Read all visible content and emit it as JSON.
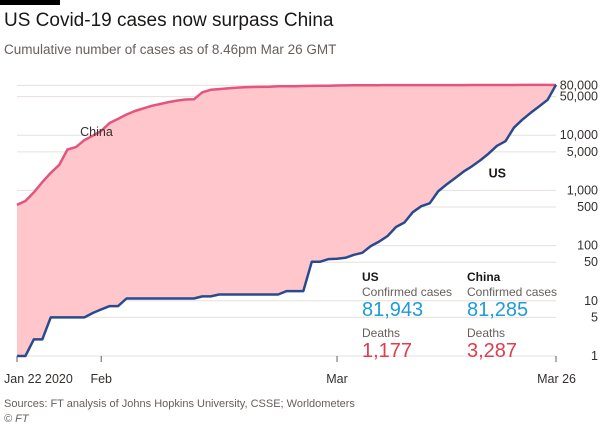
{
  "title": "US Covid-19 cases now surpass China",
  "subtitle": "Cumulative number of cases as of 8.46pm Mar 26 GMT",
  "source": "Sources: FT analysis of Johns Hopkins University, CSSE; Worldometers",
  "credit": "© FT",
  "summary": {
    "us": {
      "name": "US",
      "confirmed_label": "Confirmed cases",
      "confirmed": "81,943",
      "deaths_label": "Deaths",
      "deaths": "1,177"
    },
    "china": {
      "name": "China",
      "confirmed_label": "Confirmed cases",
      "confirmed": "81,285",
      "deaths_label": "Deaths",
      "deaths": "3,287"
    }
  },
  "colors": {
    "us_line": "#2a4a8e",
    "china_line": "#e5547c",
    "area": "#ffc7cc",
    "confirmed_text": "#1f9bd7",
    "deaths_text": "#e03c4d"
  },
  "chart_data": {
    "type": "line",
    "y_scale": "log",
    "grid": true,
    "ylim": [
      1,
      100000
    ],
    "y_ticks": [
      1,
      5,
      10,
      50,
      100,
      500,
      1000,
      5000,
      10000,
      50000,
      80000
    ],
    "y_tick_labels": [
      "1",
      "5",
      "10",
      "50",
      "100",
      "500",
      "1,000",
      "5,000",
      "10,000",
      "50,000",
      "80,000"
    ],
    "x_tick_labels": [
      "Jan 22 2020",
      "Feb",
      "Mar",
      "Mar 26"
    ],
    "x_ticks": [
      0,
      10,
      38,
      64
    ],
    "xlim": [
      0,
      64
    ],
    "series": [
      {
        "name": "China",
        "label": "China",
        "x": [
          0,
          1,
          2,
          3,
          4,
          5,
          6,
          7,
          8,
          9,
          10,
          11,
          12,
          13,
          14,
          15,
          16,
          17,
          18,
          19,
          20,
          21,
          22,
          23,
          24,
          25,
          26,
          27,
          28,
          29,
          30,
          31,
          32,
          33,
          34,
          35,
          36,
          37,
          38,
          39,
          40,
          41,
          42,
          43,
          44,
          45,
          46,
          47,
          48,
          49,
          50,
          51,
          52,
          53,
          54,
          55,
          56,
          57,
          58,
          59,
          60,
          61,
          62,
          63,
          64
        ],
        "values": [
          548,
          643,
          920,
          1406,
          2075,
          2877,
          5509,
          6087,
          8141,
          9802,
          11891,
          16630,
          19716,
          23707,
          27440,
          30587,
          34110,
          36814,
          39829,
          42354,
          44386,
          44759,
          59895,
          66358,
          68413,
          70513,
          72434,
          74211,
          74619,
          75077,
          75550,
          77001,
          77022,
          77241,
          77754,
          78166,
          78600,
          78928,
          79356,
          79932,
          80136,
          80261,
          80386,
          80537,
          80690,
          80770,
          80823,
          80860,
          80887,
          80921,
          80932,
          80945,
          80977,
          81003,
          81033,
          81058,
          81102,
          81156,
          81250,
          81305,
          81435,
          81498,
          81591,
          81661,
          81285
        ]
      },
      {
        "name": "US",
        "label": "US",
        "x": [
          0,
          1,
          2,
          3,
          4,
          5,
          6,
          7,
          8,
          9,
          10,
          11,
          12,
          13,
          14,
          15,
          16,
          17,
          18,
          19,
          20,
          21,
          22,
          23,
          24,
          25,
          26,
          27,
          28,
          29,
          30,
          31,
          32,
          33,
          34,
          35,
          36,
          37,
          38,
          39,
          40,
          41,
          42,
          43,
          44,
          45,
          46,
          47,
          48,
          49,
          50,
          51,
          52,
          53,
          54,
          55,
          56,
          57,
          58,
          59,
          60,
          61,
          62,
          63,
          64
        ],
        "values": [
          1,
          1,
          2,
          2,
          5,
          5,
          5,
          5,
          5,
          6,
          7,
          8,
          8,
          11,
          11,
          11,
          11,
          11,
          11,
          11,
          11,
          11,
          12,
          12,
          13,
          13,
          13,
          13,
          13,
          13,
          13,
          13,
          15,
          15,
          15,
          51,
          51,
          57,
          58,
          60,
          68,
          74,
          98,
          118,
          149,
          217,
          262,
          402,
          518,
          583,
          959,
          1281,
          1663,
          2179,
          2727,
          3499,
          4632,
          6421,
          7786,
          13680,
          19101,
          25493,
          33276,
          43847,
          81943
        ]
      }
    ]
  }
}
